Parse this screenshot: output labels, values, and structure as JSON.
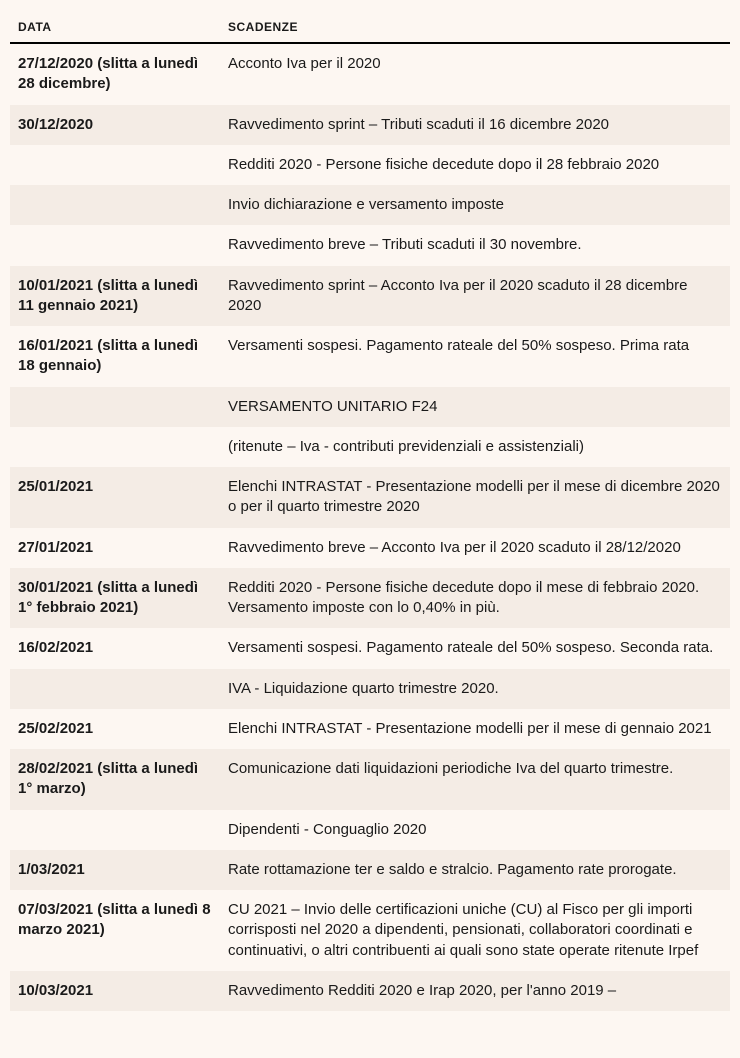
{
  "table": {
    "columns": [
      "DATA",
      "SCADENZE"
    ],
    "col_widths": [
      "210px",
      "auto"
    ],
    "header_fontsize": 12,
    "body_fontsize": 15,
    "header_border_color": "#000000",
    "shaded_bg": "#f4ece5",
    "plain_bg": "#fdf7f2",
    "rows": [
      {
        "date": "27/12/2020 (slitta a lunedì 28 dicembre)",
        "desc": "Acconto Iva per il 2020",
        "shaded": false
      },
      {
        "date": "30/12/2020",
        "desc": "Ravvedimento sprint – Tributi scaduti il 16 dicembre 2020",
        "shaded": true
      },
      {
        "date": "",
        "desc": "Redditi 2020 - Persone fisiche decedute dopo il 28 febbraio 2020",
        "shaded": false
      },
      {
        "date": "",
        "desc": "Invio dichiarazione e versamento imposte",
        "shaded": true
      },
      {
        "date": "",
        "desc": "Ravvedimento breve – Tributi scaduti il 30 novembre.",
        "shaded": false
      },
      {
        "date": "10/01/2021 (slitta a lunedì 11 gennaio 2021)",
        "desc": "Ravvedimento sprint – Acconto Iva per il 2020 scaduto il 28 dicembre 2020",
        "shaded": true
      },
      {
        "date": "16/01/2021 (slitta a lunedì 18 gennaio)",
        "desc": "Versamenti sospesi. Pagamento rateale del 50% sospeso. Prima rata",
        "shaded": false
      },
      {
        "date": "",
        "desc": "VERSAMENTO UNITARIO F24",
        "shaded": true
      },
      {
        "date": "",
        "desc": "(ritenute – Iva - contributi previdenziali e assistenziali)",
        "shaded": false
      },
      {
        "date": "25/01/2021",
        "desc": "Elenchi INTRASTAT - Presentazione modelli per il mese di dicembre 2020 o per il quarto trimestre 2020",
        "shaded": true
      },
      {
        "date": "27/01/2021",
        "desc": "Ravvedimento breve – Acconto Iva per il 2020 scaduto il 28/12/2020",
        "shaded": false
      },
      {
        "date": "30/01/2021 (slitta a lunedì 1° febbraio 2021)",
        "desc": "Redditi 2020 - Persone fisiche decedute dopo il mese di febbraio 2020. Versamento imposte con lo 0,40% in più.",
        "shaded": true
      },
      {
        "date": "16/02/2021",
        "desc": "Versamenti sospesi. Pagamento rateale del 50% sospeso. Seconda rata.",
        "shaded": false
      },
      {
        "date": "",
        "desc": "IVA - Liquidazione quarto trimestre 2020.",
        "shaded": true
      },
      {
        "date": "25/02/2021",
        "desc": "Elenchi INTRASTAT - Presentazione modelli per il mese di gennaio 2021",
        "shaded": false
      },
      {
        "date": "28/02/2021 (slitta a lunedì 1° marzo)",
        "desc": "Comunicazione dati liquidazioni periodiche Iva del quarto trimestre.",
        "shaded": true
      },
      {
        "date": "",
        "desc": "Dipendenti - Conguaglio 2020",
        "shaded": false
      },
      {
        "date": "1/03/2021",
        "desc": "Rate rottamazione ter e saldo e stralcio. Pagamento rate prorogate.",
        "shaded": true
      },
      {
        "date": "07/03/2021 (slitta a lunedì 8 marzo 2021)",
        "desc": "CU 2021 – Invio delle certificazioni uniche (CU) al Fisco per gli importi corrisposti nel 2020 a dipendenti, pensionati, collaboratori coordinati e continuativi, o altri contribuenti ai quali sono state operate ritenute Irpef",
        "shaded": false
      },
      {
        "date": "10/03/2021",
        "desc": "Ravvedimento Redditi 2020 e Irap 2020, per l'anno 2019 –",
        "shaded": true
      }
    ]
  }
}
